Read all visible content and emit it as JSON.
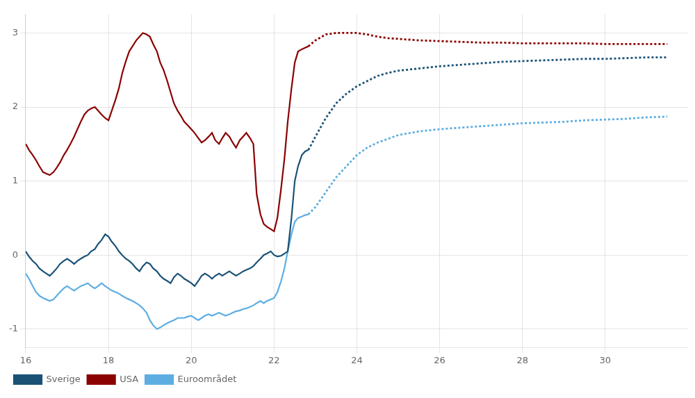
{
  "chart_data": {
    "type": "line",
    "xlim": [
      16,
      32
    ],
    "ylim": [
      -1.25,
      3.25
    ],
    "xticks": [
      16,
      18,
      20,
      22,
      24,
      26,
      28,
      30
    ],
    "yticks": [
      -1,
      0,
      1,
      2,
      3
    ],
    "grid": true,
    "legend": "bottom",
    "series": [
      {
        "name": "Sverige",
        "color": "#1a5276",
        "line_style": "solid",
        "x": [
          16.0,
          16.08,
          16.17,
          16.25,
          16.33,
          16.42,
          16.5,
          16.58,
          16.67,
          16.75,
          16.83,
          16.92,
          17.0,
          17.08,
          17.17,
          17.25,
          17.33,
          17.42,
          17.5,
          17.58,
          17.67,
          17.75,
          17.83,
          17.92,
          18.0,
          18.08,
          18.17,
          18.25,
          18.33,
          18.42,
          18.5,
          18.58,
          18.67,
          18.75,
          18.83,
          18.92,
          19.0,
          19.08,
          19.17,
          19.25,
          19.33,
          19.42,
          19.5,
          19.58,
          19.67,
          19.75,
          19.83,
          19.92,
          20.0,
          20.08,
          20.17,
          20.25,
          20.33,
          20.42,
          20.5,
          20.58,
          20.67,
          20.75,
          20.83,
          20.92,
          21.0,
          21.08,
          21.17,
          21.25,
          21.33,
          21.42,
          21.5,
          21.58,
          21.67,
          21.75,
          21.83,
          21.92,
          22.0,
          22.08,
          22.17,
          22.25,
          22.33,
          22.42,
          22.5,
          22.58,
          22.67,
          22.75,
          22.83
        ],
        "values": [
          0.05,
          -0.02,
          -0.08,
          -0.12,
          -0.18,
          -0.22,
          -0.25,
          -0.28,
          -0.23,
          -0.18,
          -0.12,
          -0.08,
          -0.05,
          -0.08,
          -0.12,
          -0.08,
          -0.05,
          -0.02,
          0.0,
          0.05,
          0.08,
          0.15,
          0.2,
          0.28,
          0.25,
          0.18,
          0.12,
          0.05,
          0.0,
          -0.05,
          -0.08,
          -0.12,
          -0.18,
          -0.22,
          -0.15,
          -0.1,
          -0.12,
          -0.18,
          -0.22,
          -0.28,
          -0.32,
          -0.35,
          -0.38,
          -0.3,
          -0.25,
          -0.28,
          -0.32,
          -0.35,
          -0.38,
          -0.42,
          -0.35,
          -0.28,
          -0.25,
          -0.28,
          -0.32,
          -0.28,
          -0.25,
          -0.28,
          -0.25,
          -0.22,
          -0.25,
          -0.28,
          -0.25,
          -0.22,
          -0.2,
          -0.18,
          -0.15,
          -0.1,
          -0.05,
          0.0,
          0.02,
          0.05,
          0.0,
          -0.02,
          -0.01,
          0.02,
          0.05,
          0.5,
          1.0,
          1.2,
          1.35,
          1.4,
          1.42
        ]
      },
      {
        "name": "USA",
        "color": "#8b0000",
        "line_style": "solid",
        "x": [
          16.0,
          16.08,
          16.17,
          16.25,
          16.33,
          16.42,
          16.5,
          16.58,
          16.67,
          16.75,
          16.83,
          16.92,
          17.0,
          17.08,
          17.17,
          17.25,
          17.33,
          17.42,
          17.5,
          17.58,
          17.67,
          17.75,
          17.83,
          17.92,
          18.0,
          18.08,
          18.17,
          18.25,
          18.33,
          18.42,
          18.5,
          18.58,
          18.67,
          18.75,
          18.83,
          18.92,
          19.0,
          19.08,
          19.17,
          19.25,
          19.33,
          19.42,
          19.5,
          19.58,
          19.67,
          19.75,
          19.83,
          19.92,
          20.0,
          20.08,
          20.17,
          20.25,
          20.33,
          20.42,
          20.5,
          20.58,
          20.67,
          20.75,
          20.83,
          20.92,
          21.0,
          21.08,
          21.17,
          21.25,
          21.33,
          21.42,
          21.5,
          21.58,
          21.67,
          21.75,
          21.83,
          21.92,
          22.0,
          22.08,
          22.17,
          22.25,
          22.33,
          22.42,
          22.5,
          22.58,
          22.67,
          22.75,
          22.83
        ],
        "values": [
          1.5,
          1.42,
          1.35,
          1.28,
          1.2,
          1.12,
          1.1,
          1.08,
          1.12,
          1.18,
          1.25,
          1.35,
          1.42,
          1.5,
          1.6,
          1.7,
          1.8,
          1.9,
          1.95,
          1.98,
          2.0,
          1.95,
          1.9,
          1.85,
          1.82,
          1.95,
          2.1,
          2.25,
          2.45,
          2.62,
          2.75,
          2.82,
          2.9,
          2.95,
          3.0,
          2.98,
          2.95,
          2.85,
          2.75,
          2.6,
          2.5,
          2.35,
          2.2,
          2.05,
          1.95,
          1.88,
          1.8,
          1.75,
          1.7,
          1.65,
          1.58,
          1.52,
          1.55,
          1.6,
          1.65,
          1.55,
          1.5,
          1.58,
          1.65,
          1.6,
          1.52,
          1.45,
          1.55,
          1.6,
          1.65,
          1.58,
          1.5,
          0.82,
          0.55,
          0.42,
          0.38,
          0.35,
          0.32,
          0.5,
          0.9,
          1.3,
          1.8,
          2.25,
          2.6,
          2.75,
          2.78,
          2.8,
          2.82
        ]
      },
      {
        "name": "Euroområdet",
        "color": "#5dade2",
        "line_style": "solid",
        "x": [
          16.0,
          16.08,
          16.17,
          16.25,
          16.33,
          16.42,
          16.5,
          16.58,
          16.67,
          16.75,
          16.83,
          16.92,
          17.0,
          17.08,
          17.17,
          17.25,
          17.33,
          17.42,
          17.5,
          17.58,
          17.67,
          17.75,
          17.83,
          17.92,
          18.0,
          18.08,
          18.17,
          18.25,
          18.33,
          18.42,
          18.5,
          18.58,
          18.67,
          18.75,
          18.83,
          18.92,
          19.0,
          19.08,
          19.17,
          19.25,
          19.33,
          19.42,
          19.5,
          19.58,
          19.67,
          19.75,
          19.83,
          19.92,
          20.0,
          20.08,
          20.17,
          20.25,
          20.33,
          20.42,
          20.5,
          20.58,
          20.67,
          20.75,
          20.83,
          20.92,
          21.0,
          21.08,
          21.17,
          21.25,
          21.33,
          21.42,
          21.5,
          21.58,
          21.67,
          21.75,
          21.83,
          21.92,
          22.0,
          22.08,
          22.17,
          22.25,
          22.33,
          22.42,
          22.5,
          22.58,
          22.67,
          22.75,
          22.83
        ],
        "values": [
          -0.25,
          -0.32,
          -0.42,
          -0.5,
          -0.55,
          -0.58,
          -0.6,
          -0.62,
          -0.6,
          -0.55,
          -0.5,
          -0.45,
          -0.42,
          -0.45,
          -0.48,
          -0.45,
          -0.42,
          -0.4,
          -0.38,
          -0.42,
          -0.45,
          -0.42,
          -0.38,
          -0.42,
          -0.45,
          -0.48,
          -0.5,
          -0.52,
          -0.55,
          -0.58,
          -0.6,
          -0.62,
          -0.65,
          -0.68,
          -0.72,
          -0.78,
          -0.88,
          -0.95,
          -1.0,
          -0.98,
          -0.95,
          -0.92,
          -0.9,
          -0.88,
          -0.85,
          -0.85,
          -0.85,
          -0.83,
          -0.82,
          -0.85,
          -0.88,
          -0.85,
          -0.82,
          -0.8,
          -0.82,
          -0.8,
          -0.78,
          -0.8,
          -0.82,
          -0.8,
          -0.78,
          -0.76,
          -0.75,
          -0.73,
          -0.72,
          -0.7,
          -0.68,
          -0.65,
          -0.62,
          -0.65,
          -0.62,
          -0.6,
          -0.58,
          -0.5,
          -0.35,
          -0.18,
          0.05,
          0.28,
          0.45,
          0.5,
          0.52,
          0.54,
          0.55
        ]
      },
      {
        "color": "#1a5276",
        "line_style": "dotted",
        "x": [
          22.83,
          23.0,
          23.25,
          23.5,
          23.75,
          24.0,
          24.25,
          24.5,
          24.75,
          25.0,
          25.5,
          26.0,
          26.5,
          27.0,
          27.5,
          28.0,
          28.5,
          29.0,
          29.5,
          30.0,
          30.5,
          31.0,
          31.5
        ],
        "values": [
          1.42,
          1.6,
          1.85,
          2.05,
          2.18,
          2.28,
          2.35,
          2.42,
          2.46,
          2.49,
          2.52,
          2.55,
          2.57,
          2.59,
          2.61,
          2.62,
          2.63,
          2.64,
          2.65,
          2.65,
          2.66,
          2.67,
          2.67
        ]
      },
      {
        "color": "#8b0000",
        "line_style": "dotted",
        "x": [
          22.83,
          23.0,
          23.25,
          23.5,
          23.75,
          24.0,
          24.25,
          24.5,
          24.75,
          25.0,
          25.5,
          26.0,
          26.5,
          27.0,
          27.5,
          28.0,
          28.5,
          29.0,
          29.5,
          30.0,
          30.5,
          31.0,
          31.5
        ],
        "values": [
          2.82,
          2.9,
          2.98,
          3.0,
          3.0,
          3.0,
          2.98,
          2.95,
          2.93,
          2.92,
          2.9,
          2.89,
          2.88,
          2.87,
          2.87,
          2.86,
          2.86,
          2.86,
          2.86,
          2.85,
          2.85,
          2.85,
          2.85
        ]
      },
      {
        "color": "#5dade2",
        "line_style": "dotted",
        "x": [
          22.83,
          23.0,
          23.25,
          23.5,
          23.75,
          24.0,
          24.25,
          24.5,
          24.75,
          25.0,
          25.5,
          26.0,
          26.5,
          27.0,
          27.5,
          28.0,
          28.5,
          29.0,
          29.5,
          30.0,
          30.5,
          31.0,
          31.5
        ],
        "values": [
          0.55,
          0.65,
          0.85,
          1.05,
          1.2,
          1.35,
          1.45,
          1.52,
          1.57,
          1.62,
          1.67,
          1.7,
          1.72,
          1.74,
          1.76,
          1.78,
          1.79,
          1.8,
          1.82,
          1.83,
          1.84,
          1.86,
          1.87
        ]
      }
    ]
  }
}
